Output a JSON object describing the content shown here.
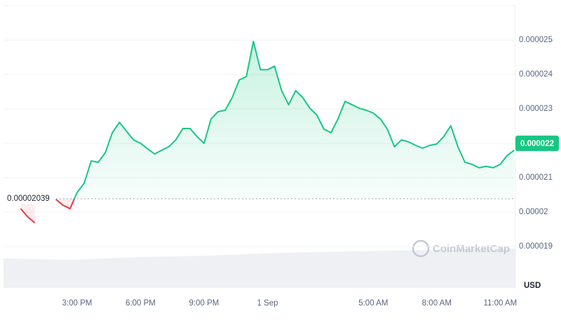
{
  "chart_data": {
    "type": "line",
    "categories": [
      null,
      null,
      null,
      null,
      null,
      null,
      null,
      null,
      null,
      null,
      "3:00 PM",
      null,
      null,
      null,
      null,
      null,
      null,
      null,
      null,
      "6:00 PM",
      null,
      null,
      null,
      null,
      null,
      null,
      null,
      null,
      "9:00 PM",
      null,
      null,
      null,
      null,
      null,
      null,
      null,
      null,
      "1 Sep",
      null,
      null,
      null,
      null,
      null,
      null,
      null,
      null,
      null,
      null,
      null,
      null,
      null,
      null,
      "5:00 AM",
      null,
      null,
      null,
      null,
      null,
      null,
      null,
      null,
      "8:00 AM",
      null,
      null,
      null,
      null,
      null,
      null,
      null,
      null,
      "11:00 AM",
      null,
      null
    ],
    "values": [
      null,
      null,
      2.01e-05,
      1.986e-05,
      1.969e-05,
      null,
      null,
      2.037e-05,
      2.02e-05,
      2.01e-05,
      2.057e-05,
      2.084e-05,
      2.149e-05,
      2.145e-05,
      2.173e-05,
      2.231e-05,
      2.261e-05,
      2.235e-05,
      2.21e-05,
      2.2e-05,
      2.184e-05,
      2.169e-05,
      2.18e-05,
      2.19e-05,
      2.21e-05,
      2.243e-05,
      2.243e-05,
      2.22e-05,
      2.2e-05,
      2.271e-05,
      2.292e-05,
      2.296e-05,
      2.333e-05,
      2.384e-05,
      2.394e-05,
      2.496e-05,
      2.414e-05,
      2.414e-05,
      2.424e-05,
      2.353e-05,
      2.312e-05,
      2.353e-05,
      2.333e-05,
      2.302e-05,
      2.282e-05,
      2.241e-05,
      2.231e-05,
      2.271e-05,
      2.322e-05,
      2.312e-05,
      2.302e-05,
      2.296e-05,
      2.288e-05,
      2.271e-05,
      2.241e-05,
      2.19e-05,
      2.21e-05,
      2.204e-05,
      2.194e-05,
      2.186e-05,
      2.194e-05,
      2.198e-05,
      2.22e-05,
      2.251e-05,
      2.19e-05,
      2.145e-05,
      2.139e-05,
      2.129e-05,
      2.133e-05,
      2.129e-05,
      2.139e-05,
      2.165e-05,
      2.18e-05
    ],
    "reference_price": 2.039e-05,
    "current_price": 2.2e-05,
    "color": "#16c784",
    "down_color": "#ea3943",
    "ylim": [
      1.78e-05,
      2.6e-05
    ],
    "yticks": [
      1.9e-05,
      2e-05,
      2.1e-05,
      2.2e-05,
      2.3e-05,
      2.4e-05,
      2.5e-05
    ],
    "grid": true,
    "y_unit": "USD",
    "watermark": "CoinMarketCap"
  }
}
